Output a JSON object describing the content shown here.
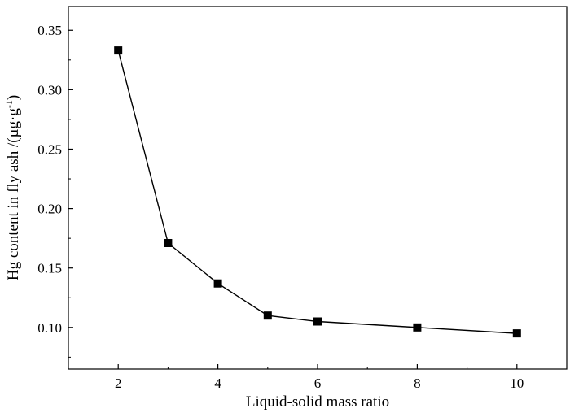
{
  "chart_data": {
    "type": "line",
    "xlabel": "Liquid-solid mass ratio",
    "ylabel": "Hg content in fly ash /(µg·g",
    "ylabel_superscript": "-1",
    "ylabel_close": ")",
    "xlim": [
      1,
      11
    ],
    "ylim": [
      0.065,
      0.37
    ],
    "xticks": [
      2,
      4,
      6,
      8,
      10
    ],
    "xtick_labels": [
      "2",
      "4",
      "6",
      "8",
      "10"
    ],
    "yticks": [
      0.1,
      0.15,
      0.2,
      0.25,
      0.3,
      0.35
    ],
    "ytick_labels": [
      "0.10",
      "0.15",
      "0.20",
      "0.25",
      "0.30",
      "0.35"
    ],
    "grid": false,
    "series": [
      {
        "marker": "square",
        "color": "#000000",
        "x": [
          2,
          3,
          4,
          5,
          6,
          8,
          10
        ],
        "y": [
          0.333,
          0.171,
          0.137,
          0.11,
          0.105,
          0.1,
          0.095
        ]
      }
    ]
  }
}
